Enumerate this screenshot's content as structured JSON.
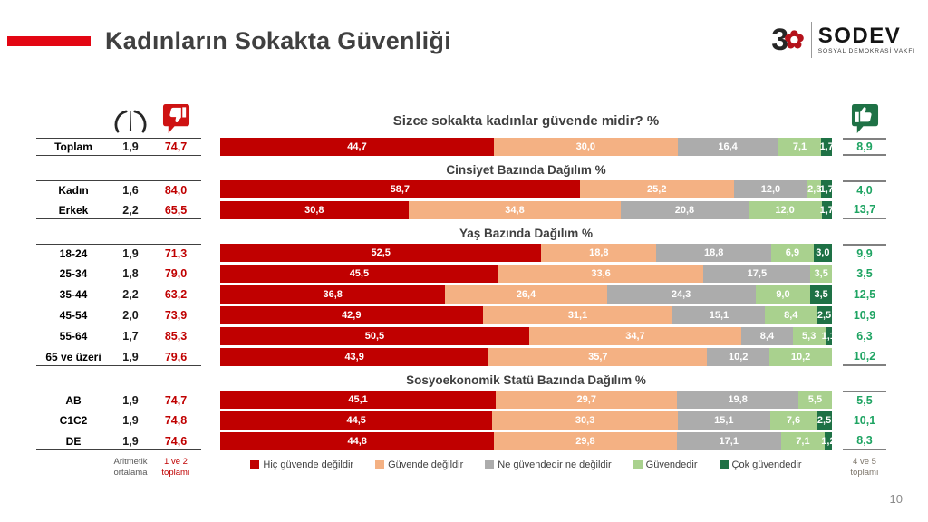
{
  "header": {
    "title": "Kadınların Sokakta Güvenliği"
  },
  "logo": {
    "number": "3",
    "rose": "✿",
    "name": "SODEV",
    "subtitle": "SOSYAL DEMOKRASİ VAKFI"
  },
  "question": "Sizce sokakta kadınlar güvende midir? %",
  "columns": {
    "mean_footer": "Aritmetik ortalama",
    "neg_footer": "1 ve 2 toplamı",
    "pos_footer": "4 ve 5 toplamı"
  },
  "page_number": "10",
  "colors": {
    "accent_red": "#E30613",
    "series": [
      "#C00000",
      "#F4B183",
      "#ACACAC",
      "#A9D18E",
      "#1E7145"
    ],
    "neg_text": "#C00000",
    "pos_text": "#1FA463"
  },
  "chart_data": {
    "type": "bar",
    "orientation": "horizontal-stacked",
    "title": "Sizce sokakta kadınlar güvende midir? %",
    "xlim": [
      0,
      100
    ],
    "legend": [
      "Hiç güvende değildir",
      "Güvende değildir",
      "Ne güvendedir ne değildir",
      "Güvendedir",
      "Çok güvendedir"
    ],
    "groups": [
      {
        "section": "",
        "rows": [
          {
            "label": "Toplam",
            "mean": "1,9",
            "neg_total": "74,7",
            "values": [
              44.7,
              30.0,
              16.4,
              7.1,
              1.7
            ],
            "value_labels": [
              "44,7",
              "30,0",
              "16,4",
              "7,1",
              "1,7"
            ],
            "pos_total": "8,9"
          }
        ]
      },
      {
        "section": "Cinsiyet Bazında Dağılım %",
        "rows": [
          {
            "label": "Kadın",
            "mean": "1,6",
            "neg_total": "84,0",
            "values": [
              58.7,
              25.2,
              12.0,
              2.3,
              1.7
            ],
            "value_labels": [
              "58,7",
              "25,2",
              "12,0",
              "2,3",
              "1,7"
            ],
            "pos_total": "4,0"
          },
          {
            "label": "Erkek",
            "mean": "2,2",
            "neg_total": "65,5",
            "values": [
              30.8,
              34.8,
              20.8,
              12.0,
              1.7
            ],
            "value_labels": [
              "30,8",
              "34,8",
              "20,8",
              "12,0",
              "1,7"
            ],
            "pos_total": "13,7"
          }
        ]
      },
      {
        "section": "Yaş Bazında Dağılım %",
        "rows": [
          {
            "label": "18-24",
            "mean": "1,9",
            "neg_total": "71,3",
            "values": [
              52.5,
              18.8,
              18.8,
              6.9,
              3.0
            ],
            "value_labels": [
              "52,5",
              "18,8",
              "18,8",
              "6,9",
              "3,0"
            ],
            "pos_total": "9,9"
          },
          {
            "label": "25-34",
            "mean": "1,8",
            "neg_total": "79,0",
            "values": [
              45.5,
              33.6,
              17.5,
              3.5
            ],
            "value_labels": [
              "45,5",
              "33,6",
              "17,5",
              "3,5"
            ],
            "pos_total": "3,5"
          },
          {
            "label": "35-44",
            "mean": "2,2",
            "neg_total": "63,2",
            "values": [
              36.8,
              26.4,
              24.3,
              9.0,
              3.5
            ],
            "value_labels": [
              "36,8",
              "26,4",
              "24,3",
              "9,0",
              "3,5"
            ],
            "pos_total": "12,5"
          },
          {
            "label": "45-54",
            "mean": "2,0",
            "neg_total": "73,9",
            "values": [
              42.9,
              31.1,
              15.1,
              8.4,
              2.5
            ],
            "value_labels": [
              "42,9",
              "31,1",
              "15,1",
              "8,4",
              "2,5"
            ],
            "pos_total": "10,9"
          },
          {
            "label": "55-64",
            "mean": "1,7",
            "neg_total": "85,3",
            "values": [
              50.5,
              34.7,
              8.4,
              5.3,
              1.1
            ],
            "value_labels": [
              "50,5",
              "34,7",
              "8,4",
              "5,3",
              "1,1"
            ],
            "pos_total": "6,3"
          },
          {
            "label": "65 ve üzeri",
            "mean": "1,9",
            "neg_total": "79,6",
            "values": [
              43.9,
              35.7,
              10.2,
              10.2
            ],
            "value_labels": [
              "43,9",
              "35,7",
              "10,2",
              "10,2"
            ],
            "pos_total": "10,2"
          }
        ]
      },
      {
        "section": "Sosyoekonomik Statü Bazında Dağılım %",
        "rows": [
          {
            "label": "AB",
            "mean": "1,9",
            "neg_total": "74,7",
            "values": [
              45.1,
              29.7,
              19.8,
              5.5
            ],
            "value_labels": [
              "45,1",
              "29,7",
              "19,8",
              "5,5"
            ],
            "pos_total": "5,5"
          },
          {
            "label": "C1C2",
            "mean": "1,9",
            "neg_total": "74,8",
            "values": [
              44.5,
              30.3,
              15.1,
              7.6,
              2.5
            ],
            "value_labels": [
              "44,5",
              "30,3",
              "15,1",
              "7,6",
              "2,5"
            ],
            "pos_total": "10,1"
          },
          {
            "label": "DE",
            "mean": "1,9",
            "neg_total": "74,6",
            "values": [
              44.8,
              29.8,
              17.1,
              7.1,
              1.2
            ],
            "value_labels": [
              "44,8",
              "29,8",
              "17,1",
              "7,1",
              "1,2"
            ],
            "pos_total": "8,3"
          }
        ]
      }
    ]
  }
}
